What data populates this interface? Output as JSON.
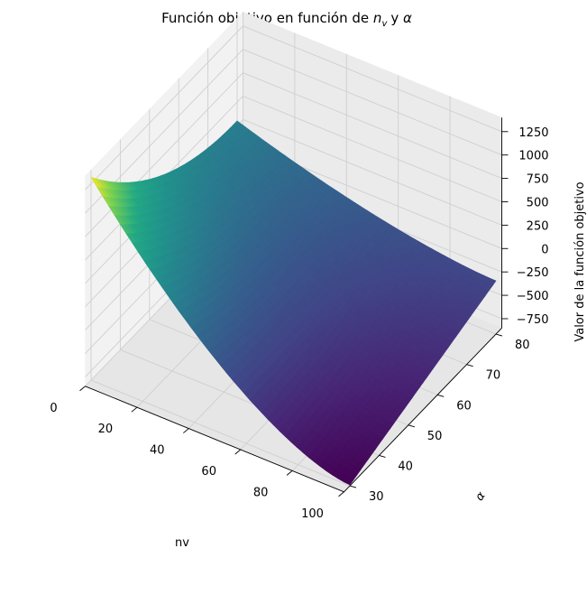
{
  "chart_data": {
    "type": "surface",
    "title": "Función objetivo en función de",
    "title_math": "n",
    "title_math_sub": "v",
    "title_mid": "y",
    "title_greek": "α",
    "xlabel": "nv",
    "ylabel": "α",
    "zlabel": "Valor de la función objetivo",
    "x_ticks": [
      "0",
      "20",
      "40",
      "60",
      "80",
      "100"
    ],
    "y_ticks": [
      "30",
      "40",
      "50",
      "60",
      "70",
      "80"
    ],
    "z_ticks": [
      "−750",
      "−500",
      "−250",
      "0",
      "250",
      "500",
      "750",
      "1000",
      "1250"
    ],
    "xlim": [
      0,
      100
    ],
    "ylim": [
      28,
      82
    ],
    "zlim": [
      -850,
      1400
    ],
    "colormap": "viridis",
    "grid": true,
    "corner_values": {
      "nv0_alpha30": 1320,
      "nv0_alpha80": 300,
      "nv100_alpha30": -840,
      "nv100_alpha80": -280
    }
  }
}
